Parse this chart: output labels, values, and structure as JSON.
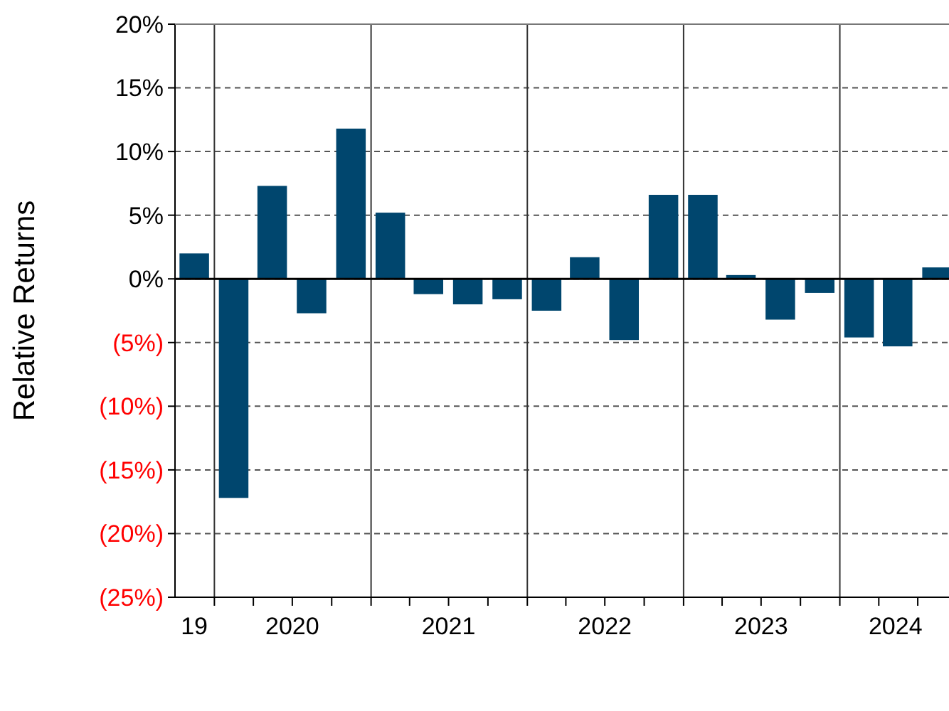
{
  "chart_data": {
    "type": "bar",
    "ylabel": "Relative Returns",
    "x": [
      "2019-11-15",
      "2020-02-15",
      "2020-05-15",
      "2020-08-15",
      "2020-11-15",
      "2021-02-15",
      "2021-05-15",
      "2021-08-15",
      "2021-11-15",
      "2022-02-15",
      "2022-05-15",
      "2022-08-15",
      "2022-11-15",
      "2023-02-15",
      "2023-05-15",
      "2023-08-15",
      "2023-11-15",
      "2024-02-15",
      "2024-05-15",
      "2024-08-15"
    ],
    "series": [
      {
        "color": "#00466e",
        "values": [
          2.0,
          -17.2,
          7.3,
          -2.7,
          11.8,
          5.2,
          -1.2,
          -2.0,
          -1.6,
          -2.5,
          1.7,
          -4.8,
          6.6,
          6.6,
          0.3,
          -3.2,
          -1.1,
          -4.6,
          -5.3,
          0.9
        ]
      }
    ],
    "xlim": [
      "2019-10-01",
      "2024-09-12"
    ],
    "xticks": [
      {
        "value": "2019-11-15",
        "label": "19"
      },
      {
        "value": "2020-07-01",
        "label": "2020"
      },
      {
        "value": "2021-07-01",
        "label": "2021"
      },
      {
        "value": "2022-07-01",
        "label": "2022"
      },
      {
        "value": "2023-07-01",
        "label": "2023"
      },
      {
        "value": "2024-05-10",
        "label": "2024"
      },
      {
        "value": "2020-01-01",
        "label": null
      },
      {
        "value": "2020-04-01",
        "label": null
      },
      {
        "value": "2020-07-01",
        "label": null
      },
      {
        "value": "2020-10-01",
        "label": null
      },
      {
        "value": "2021-01-01",
        "label": null
      },
      {
        "value": "2021-04-01",
        "label": null
      },
      {
        "value": "2021-07-01",
        "label": null
      },
      {
        "value": "2021-10-01",
        "label": null
      },
      {
        "value": "2022-01-01",
        "label": null
      },
      {
        "value": "2022-04-01",
        "label": null
      },
      {
        "value": "2022-07-01",
        "label": null
      },
      {
        "value": "2022-10-01",
        "label": null
      },
      {
        "value": "2023-01-01",
        "label": null
      },
      {
        "value": "2023-04-01",
        "label": null
      },
      {
        "value": "2023-07-01",
        "label": null
      },
      {
        "value": "2023-10-01",
        "label": null
      },
      {
        "value": "2024-01-01",
        "label": null
      },
      {
        "value": "2024-04-01",
        "label": null
      },
      {
        "value": "2024-07-01",
        "label": null
      }
    ],
    "ylim": [
      -25,
      20
    ],
    "yticks": [
      {
        "value": -25,
        "label": "(25%)"
      },
      {
        "value": -20,
        "label": "(20%)"
      },
      {
        "value": -15,
        "label": "(15%)"
      },
      {
        "value": -10,
        "label": "(10%)"
      },
      {
        "value": -5,
        "label": "(5%)"
      },
      {
        "value": 0,
        "label": "0%"
      },
      {
        "value": 5,
        "label": "5%"
      },
      {
        "value": 10,
        "label": "10%"
      },
      {
        "value": 15,
        "label": "15%"
      },
      {
        "value": 20,
        "label": "20%"
      }
    ],
    "grid": "y",
    "line_style": "dashed",
    "ref_lines": [
      {
        "axis": "x",
        "value": "2020-01-01",
        "color": "#333333"
      },
      {
        "axis": "x",
        "value": "2021-01-01",
        "color": "#333333"
      },
      {
        "axis": "x",
        "value": "2022-01-01",
        "color": "#333333"
      },
      {
        "axis": "x",
        "value": "2023-01-01",
        "color": "#333333"
      },
      {
        "axis": "x",
        "value": "2024-01-01",
        "color": "#333333"
      },
      {
        "axis": "y",
        "value": 0,
        "color": "#000000"
      }
    ]
  }
}
